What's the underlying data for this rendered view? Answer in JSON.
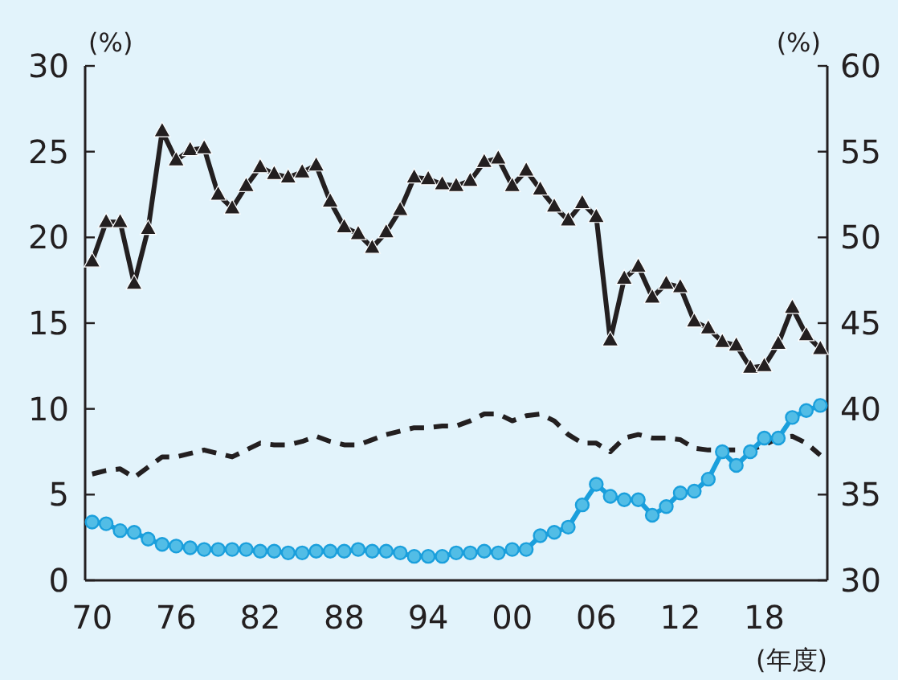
{
  "chart_data": {
    "type": "line",
    "xlabel": "(年度)",
    "ylabel": "(%)",
    "y2label": "(%)",
    "x": [
      1970,
      1971,
      1972,
      1973,
      1974,
      1975,
      1976,
      1977,
      1978,
      1979,
      1980,
      1981,
      1982,
      1983,
      1984,
      1985,
      1986,
      1987,
      1988,
      1989,
      1990,
      1991,
      1992,
      1993,
      1994,
      1995,
      1996,
      1997,
      1998,
      1999,
      2000,
      2001,
      2002,
      2003,
      2004,
      2005,
      2006,
      2007,
      2008,
      2009,
      2010,
      2011,
      2012,
      2013,
      2014,
      2015,
      2016,
      2017,
      2018,
      2019,
      2020,
      2021,
      2022
    ],
    "xlim": [
      1969.5,
      2022.5
    ],
    "xticks": [
      {
        "value": 1970,
        "label": "70"
      },
      {
        "value": 1976,
        "label": "76"
      },
      {
        "value": 1982,
        "label": "82"
      },
      {
        "value": 1988,
        "label": "88"
      },
      {
        "value": 1994,
        "label": "94"
      },
      {
        "value": 2000,
        "label": "00"
      },
      {
        "value": 2006,
        "label": "06"
      },
      {
        "value": 2012,
        "label": "12"
      },
      {
        "value": 2018,
        "label": "18"
      }
    ],
    "ylim": [
      0,
      30
    ],
    "yticks": [
      0,
      5,
      10,
      15,
      20,
      25,
      30
    ],
    "y2lim": [
      30,
      60
    ],
    "y2ticks": [
      30,
      35,
      40,
      45,
      50,
      55,
      60
    ],
    "grid": false,
    "series": [
      {
        "color": "#231f20",
        "axis": "y2",
        "marker": "triangle",
        "line_style": "solid",
        "values": [
          48.6,
          50.9,
          50.9,
          47.3,
          50.5,
          56.2,
          54.5,
          55.1,
          55.2,
          52.5,
          51.7,
          53.0,
          54.1,
          53.7,
          53.5,
          53.8,
          54.2,
          52.1,
          50.6,
          50.2,
          49.4,
          50.3,
          51.6,
          53.5,
          53.4,
          53.1,
          53.0,
          53.3,
          54.4,
          54.6,
          53.0,
          53.9,
          52.8,
          51.8,
          51.0,
          52.0,
          51.2,
          44.0,
          47.6,
          48.3,
          46.5,
          47.3,
          47.1,
          45.1,
          44.7,
          43.9,
          43.7,
          42.4,
          42.5,
          43.8,
          45.9,
          44.3,
          43.5
        ]
      },
      {
        "color": "#231f20",
        "axis": "y",
        "marker": "none",
        "line_style": "dashed",
        "values": [
          6.2,
          6.4,
          6.5,
          6.0,
          6.6,
          7.2,
          7.2,
          7.4,
          7.6,
          7.4,
          7.2,
          7.6,
          8.0,
          7.9,
          7.9,
          8.1,
          8.4,
          8.1,
          7.9,
          7.9,
          8.2,
          8.5,
          8.7,
          8.9,
          8.9,
          9.0,
          9.0,
          9.3,
          9.7,
          9.7,
          9.3,
          9.6,
          9.7,
          9.3,
          8.5,
          8.0,
          8.0,
          7.5,
          8.3,
          8.5,
          8.3,
          8.3,
          8.2,
          7.7,
          7.6,
          7.6,
          7.6,
          7.6,
          7.9,
          8.3,
          8.4,
          8.0,
          7.3
        ]
      },
      {
        "color": "#1a9fdc",
        "axis": "y",
        "marker": "circle",
        "line_style": "solid",
        "values": [
          3.4,
          3.3,
          2.9,
          2.8,
          2.4,
          2.1,
          2.0,
          1.9,
          1.8,
          1.8,
          1.8,
          1.8,
          1.7,
          1.7,
          1.6,
          1.6,
          1.7,
          1.7,
          1.7,
          1.8,
          1.7,
          1.7,
          1.6,
          1.4,
          1.4,
          1.4,
          1.6,
          1.6,
          1.7,
          1.6,
          1.8,
          1.8,
          2.6,
          2.8,
          3.1,
          4.4,
          5.6,
          4.9,
          4.7,
          4.7,
          3.8,
          4.3,
          5.1,
          5.2,
          5.9,
          7.5,
          6.7,
          7.5,
          8.3,
          8.3,
          9.5,
          9.9,
          10.2
        ]
      }
    ]
  }
}
